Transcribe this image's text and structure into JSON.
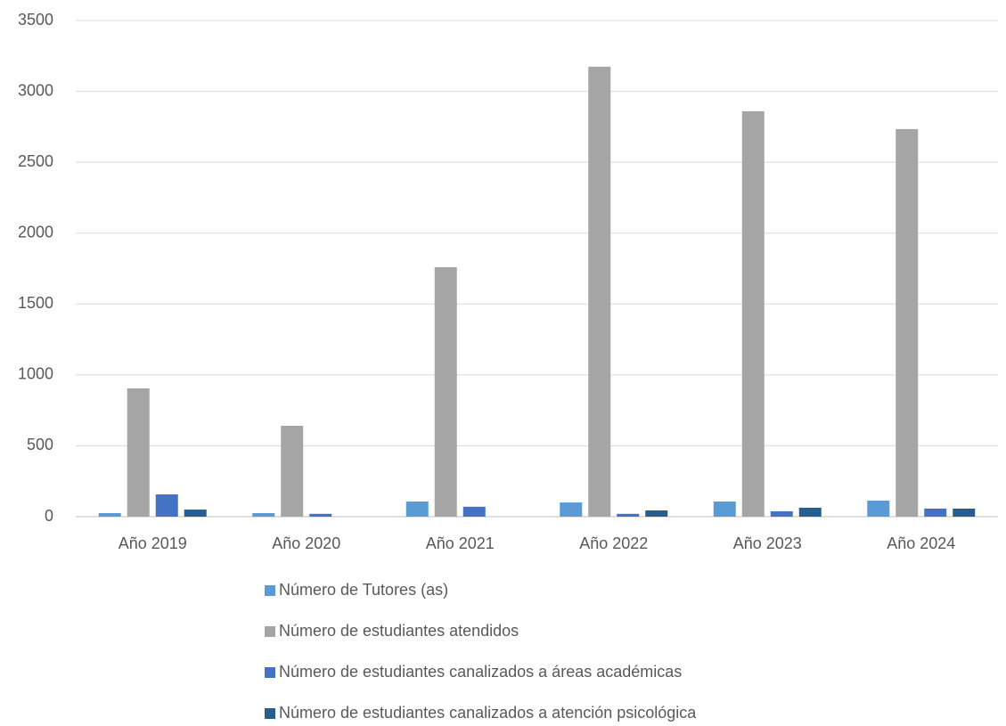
{
  "chart_data": {
    "type": "bar",
    "categories": [
      "Año 2019",
      "Año 2020",
      "Año 2021",
      "Año 2022",
      "Año 2023",
      "Año 2024"
    ],
    "series": [
      {
        "name": "Número de Tutores (as)",
        "color": "#5b9bd5",
        "values": [
          25,
          25,
          107,
          100,
          107,
          113
        ]
      },
      {
        "name": "Número de estudiantes atendidos",
        "color": "#a5a5a5",
        "values": [
          905,
          641,
          1760,
          3174,
          2860,
          2734
        ]
      },
      {
        "name": "Número de estudiantes canalizados a áreas académicas",
        "color": "#4472c4",
        "values": [
          157,
          20,
          70,
          20,
          38,
          57
        ]
      },
      {
        "name": "Número de estudiantes canalizados a atención psicológica",
        "color": "#255e91",
        "values": [
          50,
          0,
          0,
          44,
          63,
          57
        ]
      }
    ],
    "ylim": [
      0,
      3500
    ],
    "yticks": [
      0,
      500,
      1000,
      1500,
      2000,
      2500,
      3000,
      3500
    ],
    "grid": true,
    "legend": "bottom"
  }
}
